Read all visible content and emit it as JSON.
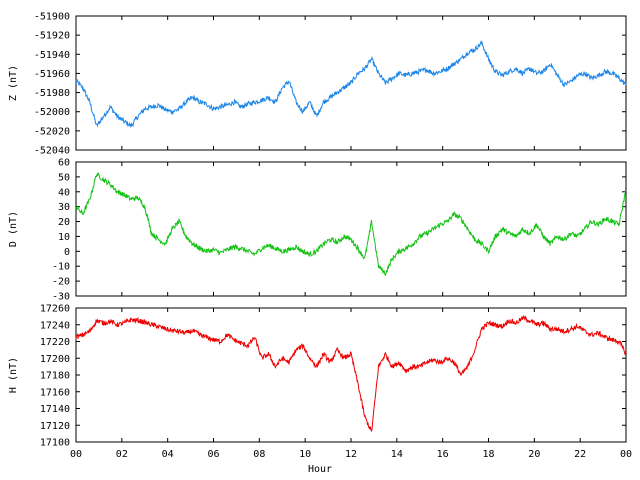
{
  "chart_data": [
    {
      "type": "line",
      "ylabel": "Z (nT)",
      "color": "#1e86e8",
      "ylim": [
        -52040,
        -51900
      ],
      "yticks": [
        -51900,
        -51920,
        -51940,
        -51960,
        -51980,
        -52000,
        -52020,
        -52040
      ],
      "series": [
        {
          "x": [
            0,
            0.3,
            0.6,
            0.9,
            1.2,
            1.5,
            1.8,
            2.1,
            2.4,
            2.7,
            3.0,
            3.3,
            3.6,
            3.9,
            4.2,
            4.5,
            4.8,
            5.1,
            5.4,
            5.7,
            6.0,
            6.3,
            6.6,
            6.9,
            7.2,
            7.5,
            7.8,
            8.1,
            8.4,
            8.7,
            9.0,
            9.3,
            9.6,
            9.9,
            10.2,
            10.5,
            10.8,
            11.1,
            11.4,
            11.7,
            12.0,
            12.3,
            12.6,
            12.9,
            13.2,
            13.5,
            13.8,
            14.1,
            14.4,
            14.7,
            15.0,
            15.3,
            15.6,
            15.9,
            16.2,
            16.5,
            16.8,
            17.1,
            17.4,
            17.7,
            18.0,
            18.3,
            18.6,
            18.9,
            19.2,
            19.5,
            19.8,
            20.1,
            20.4,
            20.7,
            21.0,
            21.3,
            21.6,
            21.9,
            22.2,
            22.5,
            22.8,
            23.1,
            23.4,
            23.7,
            24.0
          ],
          "values": [
            -51968,
            -51975,
            -51990,
            -52015,
            -52005,
            -51995,
            -52005,
            -52010,
            -52015,
            -52005,
            -51997,
            -51995,
            -51993,
            -51998,
            -52000,
            -51997,
            -51990,
            -51985,
            -51990,
            -51992,
            -51997,
            -51995,
            -51993,
            -51990,
            -51995,
            -51992,
            -51990,
            -51988,
            -51985,
            -51990,
            -51975,
            -51968,
            -51990,
            -52000,
            -51990,
            -52005,
            -51990,
            -51985,
            -51980,
            -51975,
            -51970,
            -51960,
            -51955,
            -51945,
            -51960,
            -51970,
            -51965,
            -51960,
            -51962,
            -51960,
            -51958,
            -51956,
            -51960,
            -51958,
            -51955,
            -51950,
            -51945,
            -51938,
            -51935,
            -51928,
            -51945,
            -51958,
            -51962,
            -51958,
            -51955,
            -51960,
            -51955,
            -51960,
            -51958,
            -51950,
            -51962,
            -51972,
            -51968,
            -51962,
            -51960,
            -51965,
            -51962,
            -51958,
            -51960,
            -51965,
            -51972
          ]
        }
      ]
    },
    {
      "type": "line",
      "ylabel": "D (nT)",
      "color": "#14c214",
      "ylim": [
        -30,
        60
      ],
      "yticks": [
        60,
        50,
        40,
        30,
        20,
        10,
        0,
        -10,
        -20,
        -30
      ],
      "series": [
        {
          "x": [
            0,
            0.3,
            0.6,
            0.9,
            1.2,
            1.5,
            1.8,
            2.1,
            2.4,
            2.7,
            3.0,
            3.3,
            3.6,
            3.9,
            4.2,
            4.5,
            4.8,
            5.1,
            5.4,
            5.7,
            6.0,
            6.3,
            6.6,
            6.9,
            7.2,
            7.5,
            7.8,
            8.1,
            8.4,
            8.7,
            9.0,
            9.3,
            9.6,
            9.9,
            10.2,
            10.5,
            10.8,
            11.1,
            11.4,
            11.7,
            12.0,
            12.3,
            12.6,
            12.9,
            13.2,
            13.5,
            13.8,
            14.1,
            14.4,
            14.7,
            15.0,
            15.3,
            15.6,
            15.9,
            16.2,
            16.5,
            16.8,
            17.1,
            17.4,
            17.7,
            18.0,
            18.3,
            18.6,
            18.9,
            19.2,
            19.5,
            19.8,
            20.1,
            20.4,
            20.7,
            21.0,
            21.3,
            21.6,
            21.9,
            22.2,
            22.5,
            22.8,
            23.1,
            23.4,
            23.7,
            24.0
          ],
          "values": [
            30,
            25,
            35,
            52,
            48,
            45,
            40,
            38,
            35,
            36,
            30,
            12,
            8,
            5,
            15,
            20,
            10,
            5,
            2,
            0,
            1,
            -1,
            1,
            3,
            2,
            0,
            -2,
            2,
            4,
            2,
            0,
            1,
            3,
            0,
            -2,
            0,
            5,
            8,
            6,
            10,
            8,
            2,
            -5,
            20,
            -10,
            -15,
            -5,
            0,
            2,
            5,
            10,
            12,
            15,
            18,
            20,
            25,
            22,
            15,
            8,
            5,
            0,
            10,
            15,
            12,
            10,
            15,
            12,
            18,
            10,
            5,
            10,
            8,
            12,
            10,
            15,
            20,
            18,
            22,
            20,
            18,
            42
          ]
        }
      ]
    },
    {
      "type": "line",
      "ylabel": "H (nT)",
      "xlabel": "Hour",
      "color": "#ee0000",
      "ylim": [
        17100,
        17260
      ],
      "yticks": [
        17260,
        17240,
        17220,
        17200,
        17180,
        17160,
        17140,
        17120,
        17100
      ],
      "xticks": [
        "00",
        "02",
        "04",
        "06",
        "08",
        "10",
        "12",
        "14",
        "16",
        "18",
        "20",
        "22",
        "00"
      ],
      "series": [
        {
          "x": [
            0,
            0.3,
            0.6,
            0.9,
            1.2,
            1.5,
            1.8,
            2.1,
            2.4,
            2.7,
            3.0,
            3.3,
            3.6,
            3.9,
            4.2,
            4.5,
            4.8,
            5.1,
            5.4,
            5.7,
            6.0,
            6.3,
            6.6,
            6.9,
            7.2,
            7.5,
            7.8,
            8.1,
            8.4,
            8.7,
            9.0,
            9.3,
            9.6,
            9.9,
            10.2,
            10.5,
            10.8,
            11.1,
            11.4,
            11.7,
            12.0,
            12.3,
            12.6,
            12.9,
            13.2,
            13.5,
            13.8,
            14.1,
            14.4,
            14.7,
            15.0,
            15.3,
            15.6,
            15.9,
            16.2,
            16.5,
            16.8,
            17.1,
            17.4,
            17.7,
            18.0,
            18.3,
            18.6,
            18.9,
            19.2,
            19.5,
            19.8,
            20.1,
            20.4,
            20.7,
            21.0,
            21.3,
            21.6,
            21.9,
            22.2,
            22.5,
            22.8,
            23.1,
            23.4,
            23.7,
            24.0
          ],
          "values": [
            17225,
            17228,
            17232,
            17245,
            17242,
            17244,
            17240,
            17242,
            17246,
            17245,
            17243,
            17240,
            17238,
            17235,
            17233,
            17232,
            17230,
            17233,
            17228,
            17225,
            17222,
            17220,
            17228,
            17222,
            17218,
            17215,
            17225,
            17200,
            17205,
            17190,
            17200,
            17195,
            17210,
            17215,
            17200,
            17190,
            17205,
            17195,
            17210,
            17200,
            17205,
            17170,
            17130,
            17112,
            17190,
            17205,
            17190,
            17195,
            17185,
            17190,
            17190,
            17195,
            17198,
            17195,
            17200,
            17195,
            17180,
            17190,
            17210,
            17235,
            17242,
            17240,
            17238,
            17245,
            17242,
            17248,
            17245,
            17240,
            17242,
            17235,
            17235,
            17232,
            17235,
            17238,
            17232,
            17228,
            17230,
            17225,
            17222,
            17220,
            17205
          ]
        }
      ]
    }
  ]
}
